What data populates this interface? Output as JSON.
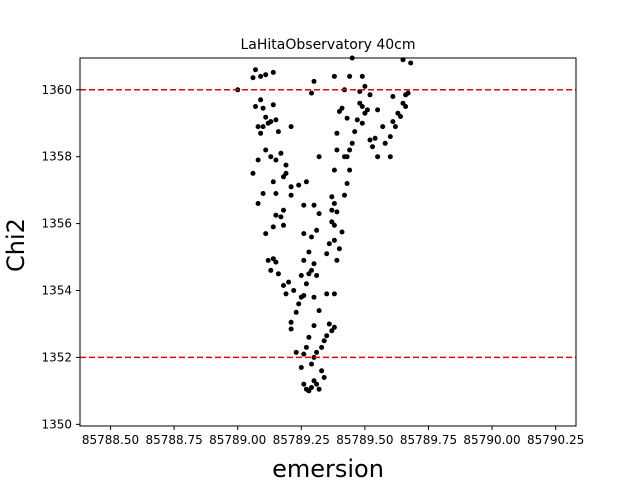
{
  "chart_data": {
    "type": "scatter",
    "title": "LaHitaObservatory 40cm",
    "xlabel": "emersion",
    "ylabel": "Chi2",
    "xlim": [
      85788.38,
      85790.33
    ],
    "ylim": [
      1349.95,
      1360.95
    ],
    "xticks": [
      85788.5,
      85788.75,
      85789.0,
      85789.25,
      85789.5,
      85789.75,
      85790.0,
      85790.25
    ],
    "xtick_labels": [
      "85788.50",
      "85788.75",
      "85789.00",
      "85789.25",
      "85789.50",
      "85789.75",
      "85790.00",
      "85790.25"
    ],
    "yticks": [
      1350,
      1352,
      1354,
      1356,
      1358,
      1360
    ],
    "ytick_labels": [
      "1350",
      "1352",
      "1354",
      "1356",
      "1358",
      "1360"
    ],
    "hlines": [
      {
        "y": 1360,
        "color": "#e8000b",
        "style": "dashed"
      },
      {
        "y": 1352,
        "color": "#e8000b",
        "style": "dashed"
      }
    ],
    "marker_color": "#000000",
    "grid": false,
    "points": [
      [
        85789.0,
        1360.0
      ],
      [
        85789.06,
        1360.36
      ],
      [
        85789.07,
        1360.6
      ],
      [
        85789.09,
        1360.4
      ],
      [
        85789.11,
        1360.45
      ],
      [
        85789.14,
        1360.52
      ],
      [
        85789.07,
        1359.5
      ],
      [
        85789.09,
        1359.7
      ],
      [
        85789.1,
        1359.45
      ],
      [
        85789.11,
        1359.18
      ],
      [
        85789.12,
        1359.0
      ],
      [
        85789.1,
        1358.9
      ],
      [
        85789.08,
        1358.9
      ],
      [
        85789.09,
        1358.7
      ],
      [
        85789.13,
        1359.05
      ],
      [
        85789.14,
        1359.55
      ],
      [
        85789.15,
        1359.1
      ],
      [
        85789.16,
        1358.75
      ],
      [
        85789.08,
        1357.9
      ],
      [
        85789.11,
        1358.2
      ],
      [
        85789.13,
        1358.0
      ],
      [
        85789.15,
        1357.9
      ],
      [
        85789.17,
        1358.1
      ],
      [
        85789.18,
        1357.4
      ],
      [
        85789.19,
        1357.75
      ],
      [
        85789.21,
        1358.9
      ],
      [
        85789.06,
        1357.5
      ],
      [
        85789.14,
        1357.25
      ],
      [
        85789.15,
        1356.9
      ],
      [
        85789.19,
        1357.5
      ],
      [
        85789.21,
        1357.1
      ],
      [
        85789.24,
        1357.15
      ],
      [
        85789.21,
        1356.85
      ],
      [
        85789.08,
        1356.6
      ],
      [
        85789.1,
        1356.9
      ],
      [
        85789.15,
        1356.25
      ],
      [
        85789.18,
        1356.4
      ],
      [
        85789.18,
        1355.95
      ],
      [
        85789.17,
        1356.2
      ],
      [
        85789.11,
        1355.7
      ],
      [
        85789.14,
        1355.9
      ],
      [
        85789.12,
        1354.9
      ],
      [
        85789.13,
        1354.6
      ],
      [
        85789.14,
        1354.95
      ],
      [
        85789.15,
        1354.85
      ],
      [
        85789.16,
        1354.5
      ],
      [
        85789.18,
        1354.15
      ],
      [
        85789.19,
        1353.9
      ],
      [
        85789.2,
        1354.25
      ],
      [
        85789.22,
        1354.0
      ],
      [
        85789.21,
        1353.05
      ],
      [
        85789.21,
        1352.85
      ],
      [
        85789.23,
        1353.35
      ],
      [
        85789.24,
        1353.6
      ],
      [
        85789.25,
        1353.8
      ],
      [
        85789.26,
        1353.85
      ],
      [
        85789.23,
        1352.15
      ],
      [
        85789.26,
        1352.1
      ],
      [
        85789.27,
        1352.3
      ],
      [
        85789.25,
        1351.7
      ],
      [
        85789.26,
        1351.2
      ],
      [
        85789.27,
        1351.05
      ],
      [
        85789.28,
        1351.0
      ],
      [
        85789.29,
        1351.1
      ],
      [
        85789.3,
        1351.3
      ],
      [
        85789.31,
        1351.2
      ],
      [
        85789.32,
        1351.05
      ],
      [
        85789.33,
        1351.6
      ],
      [
        85789.34,
        1351.4
      ],
      [
        85789.29,
        1351.8
      ],
      [
        85789.3,
        1352.0
      ],
      [
        85789.31,
        1352.15
      ],
      [
        85789.33,
        1352.3
      ],
      [
        85789.34,
        1352.5
      ],
      [
        85789.35,
        1352.65
      ],
      [
        85789.36,
        1353.0
      ],
      [
        85789.37,
        1352.8
      ],
      [
        85789.38,
        1352.9
      ],
      [
        85789.28,
        1352.6
      ],
      [
        85789.3,
        1352.95
      ],
      [
        85789.32,
        1353.4
      ],
      [
        85789.35,
        1353.9
      ],
      [
        85789.38,
        1353.9
      ],
      [
        85789.3,
        1353.8
      ],
      [
        85789.25,
        1354.45
      ],
      [
        85789.27,
        1354.2
      ],
      [
        85789.28,
        1354.5
      ],
      [
        85789.29,
        1354.6
      ],
      [
        85789.3,
        1354.8
      ],
      [
        85789.31,
        1354.45
      ],
      [
        85789.26,
        1354.9
      ],
      [
        85789.28,
        1355.15
      ],
      [
        85789.29,
        1355.6
      ],
      [
        85789.31,
        1355.8
      ],
      [
        85789.26,
        1355.7
      ],
      [
        85789.35,
        1355.1
      ],
      [
        85789.36,
        1355.4
      ],
      [
        85789.38,
        1355.5
      ],
      [
        85789.39,
        1354.9
      ],
      [
        85789.4,
        1355.25
      ],
      [
        85789.41,
        1355.75
      ],
      [
        85789.32,
        1356.3
      ],
      [
        85789.37,
        1356.4
      ],
      [
        85789.38,
        1356.6
      ],
      [
        85789.39,
        1356.35
      ],
      [
        85789.37,
        1356.05
      ],
      [
        85789.38,
        1355.95
      ],
      [
        85789.26,
        1356.55
      ],
      [
        85789.3,
        1356.55
      ],
      [
        85789.27,
        1357.25
      ],
      [
        85789.37,
        1356.8
      ],
      [
        85789.38,
        1357.6
      ],
      [
        85789.42,
        1356.85
      ],
      [
        85789.43,
        1357.2
      ],
      [
        85789.44,
        1357.6
      ],
      [
        85789.39,
        1358.2
      ],
      [
        85789.42,
        1358.0
      ],
      [
        85789.43,
        1358.0
      ],
      [
        85789.44,
        1358.2
      ],
      [
        85789.45,
        1358.4
      ],
      [
        85789.32,
        1358.0
      ],
      [
        85789.39,
        1358.7
      ],
      [
        85789.4,
        1359.35
      ],
      [
        85789.41,
        1359.45
      ],
      [
        85789.43,
        1359.15
      ],
      [
        85789.46,
        1358.75
      ],
      [
        85789.47,
        1359.1
      ],
      [
        85789.48,
        1359.6
      ],
      [
        85789.49,
        1359.5
      ],
      [
        85789.49,
        1359.0
      ],
      [
        85789.5,
        1359.3
      ],
      [
        85789.51,
        1359.4
      ],
      [
        85789.52,
        1358.5
      ],
      [
        85789.53,
        1358.3
      ],
      [
        85789.54,
        1358.55
      ],
      [
        85789.55,
        1358.0
      ],
      [
        85789.55,
        1359.4
      ],
      [
        85789.57,
        1358.9
      ],
      [
        85789.58,
        1358.4
      ],
      [
        85789.6,
        1358.0
      ],
      [
        85789.6,
        1358.6
      ],
      [
        85789.61,
        1359.05
      ],
      [
        85789.62,
        1358.9
      ],
      [
        85789.63,
        1359.3
      ],
      [
        85789.64,
        1359.2
      ],
      [
        85789.65,
        1359.6
      ],
      [
        85789.66,
        1359.85
      ],
      [
        85789.67,
        1359.9
      ],
      [
        85789.66,
        1359.5
      ],
      [
        85789.61,
        1359.8
      ],
      [
        85789.48,
        1359.95
      ],
      [
        85789.5,
        1360.1
      ],
      [
        85789.52,
        1359.85
      ],
      [
        85789.49,
        1360.4
      ],
      [
        85789.44,
        1360.4
      ],
      [
        85789.42,
        1360.0
      ],
      [
        85789.38,
        1360.4
      ],
      [
        85789.3,
        1360.25
      ],
      [
        85789.29,
        1359.9
      ],
      [
        85789.45,
        1360.95
      ],
      [
        85789.65,
        1360.9
      ],
      [
        85789.68,
        1360.8
      ]
    ]
  }
}
